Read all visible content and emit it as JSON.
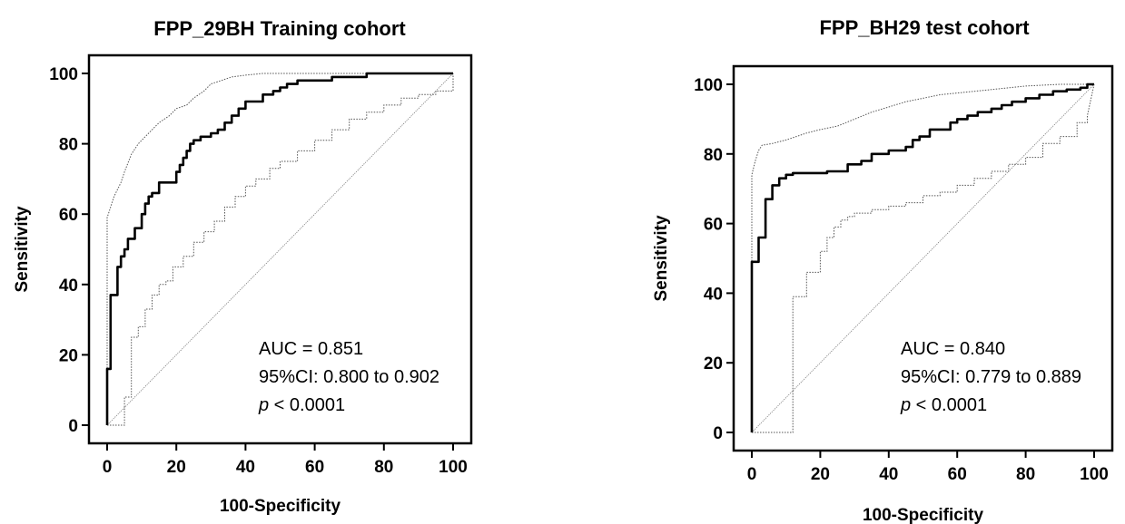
{
  "chart_data": [
    {
      "type": "line",
      "title": "FPP_29BH Training cohort",
      "xlabel": "100-Specificity",
      "ylabel": "Sensitivity",
      "xlim": [
        0,
        100
      ],
      "ylim": [
        0,
        100
      ],
      "xticks": [
        "0",
        "20",
        "40",
        "60",
        "80",
        "100"
      ],
      "yticks": [
        "0",
        "20",
        "40",
        "60",
        "80",
        "100"
      ],
      "grid": false,
      "annotations": {
        "auc": "AUC = 0.851",
        "ci": "95%CI: 0.800 to 0.902",
        "p_italic": "p",
        "p_rest": " < 0.0001"
      },
      "series": [
        {
          "role": "roc",
          "x": [
            0,
            0,
            1,
            1,
            3,
            3,
            4,
            4,
            5,
            5,
            6,
            6,
            8,
            8,
            10,
            10,
            11,
            11,
            12,
            12,
            13,
            13,
            15,
            15,
            17,
            17,
            20,
            20,
            21,
            21,
            22,
            22,
            23,
            23,
            24,
            24,
            25,
            25,
            27,
            27,
            30,
            30,
            32,
            32,
            34,
            34,
            36,
            36,
            38,
            38,
            40,
            40,
            45,
            45,
            48,
            48,
            50,
            50,
            52,
            52,
            55,
            55,
            60,
            60,
            65,
            65,
            70,
            70,
            75,
            75,
            85,
            85,
            100
          ],
          "y": [
            0,
            16,
            16,
            37,
            37,
            45,
            45,
            48,
            48,
            50,
            50,
            53,
            53,
            56,
            56,
            60,
            60,
            63,
            63,
            65,
            65,
            66,
            66,
            69,
            69,
            69,
            69,
            72,
            72,
            74,
            74,
            76,
            76,
            78,
            78,
            80,
            80,
            81,
            81,
            82,
            82,
            83,
            83,
            84,
            84,
            86,
            86,
            88,
            88,
            90,
            90,
            92,
            92,
            94,
            94,
            95,
            95,
            96,
            96,
            97,
            97,
            98,
            98,
            98,
            98,
            99,
            99,
            99,
            99,
            100,
            100,
            100,
            100
          ]
        },
        {
          "role": "ci-upper",
          "x": [
            0,
            0,
            1,
            2,
            3,
            4,
            5,
            7,
            9,
            11,
            13,
            15,
            18,
            20,
            23,
            25,
            28,
            30,
            33,
            36,
            40,
            45,
            55,
            65,
            80,
            100
          ],
          "y": [
            0,
            59,
            62,
            65,
            67,
            69,
            72,
            77,
            80,
            82,
            84,
            86,
            88,
            90,
            91,
            93,
            95,
            97,
            98,
            99,
            99.5,
            100,
            100,
            100,
            100,
            100
          ]
        },
        {
          "role": "ci-lower",
          "x": [
            0,
            5,
            5,
            7,
            7,
            9,
            9,
            11,
            11,
            13,
            13,
            15,
            15,
            17,
            17,
            19,
            19,
            22,
            22,
            25,
            25,
            28,
            28,
            31,
            31,
            34,
            34,
            37,
            37,
            40,
            40,
            43,
            43,
            47,
            47,
            50,
            50,
            55,
            55,
            60,
            60,
            65,
            65,
            70,
            70,
            75,
            75,
            80,
            80,
            85,
            85,
            90,
            90,
            95,
            95,
            100,
            100
          ],
          "y": [
            0,
            0,
            8,
            8,
            25,
            25,
            28,
            28,
            33,
            33,
            37,
            37,
            40,
            40,
            41,
            41,
            45,
            45,
            48,
            48,
            52,
            52,
            55,
            55,
            58,
            58,
            62,
            62,
            65,
            65,
            68,
            68,
            70,
            70,
            73,
            73,
            75,
            75,
            78,
            78,
            81,
            81,
            84,
            84,
            87,
            87,
            89,
            89,
            91,
            91,
            93,
            93,
            94,
            94,
            95,
            95,
            100
          ]
        },
        {
          "role": "reference",
          "x": [
            0,
            100
          ],
          "y": [
            0,
            100
          ]
        }
      ]
    },
    {
      "type": "line",
      "title": "FPP_BH29 test cohort",
      "xlabel": "100-Specificity",
      "ylabel": "Sensitivity",
      "xlim": [
        0,
        100
      ],
      "ylim": [
        0,
        100
      ],
      "xticks": [
        "0",
        "20",
        "40",
        "60",
        "80",
        "100"
      ],
      "yticks": [
        "0",
        "20",
        "40",
        "60",
        "80",
        "100"
      ],
      "grid": false,
      "annotations": {
        "auc": "AUC = 0.840",
        "ci": "95%CI: 0.779 to 0.889",
        "p_italic": "p",
        "p_rest": " < 0.0001"
      },
      "series": [
        {
          "role": "roc",
          "x": [
            0,
            0,
            2,
            2,
            4,
            4,
            6,
            6,
            8,
            8,
            10,
            10,
            12,
            12,
            15,
            20,
            22,
            22,
            28,
            28,
            32,
            32,
            35,
            35,
            40,
            40,
            45,
            45,
            47,
            47,
            49,
            49,
            52,
            52,
            58,
            58,
            60,
            60,
            63,
            63,
            66,
            66,
            70,
            70,
            73,
            73,
            76,
            76,
            80,
            80,
            84,
            84,
            88,
            88,
            92,
            92,
            96,
            96,
            98,
            98,
            100
          ],
          "y": [
            0,
            49,
            49,
            56,
            56,
            67,
            67,
            71,
            71,
            73,
            73,
            74,
            74,
            74.5,
            74.5,
            74.5,
            74.5,
            75,
            75,
            77,
            77,
            78,
            78,
            80,
            80,
            81,
            81,
            82,
            82,
            84,
            84,
            85,
            85,
            87,
            87,
            89,
            89,
            90,
            90,
            91,
            91,
            92,
            92,
            93,
            93,
            94,
            94,
            95,
            95,
            96,
            96,
            97,
            97,
            98,
            98,
            98.5,
            98.5,
            99,
            99,
            100,
            100
          ]
        },
        {
          "role": "ci-upper",
          "x": [
            0,
            0,
            1,
            2,
            3,
            6,
            10,
            13,
            16,
            20,
            25,
            30,
            35,
            40,
            45,
            50,
            55,
            60,
            65,
            70,
            80,
            90,
            100
          ],
          "y": [
            0,
            74,
            78,
            81,
            82.5,
            83,
            84,
            85,
            86,
            87,
            88,
            90,
            92,
            93.5,
            95,
            96,
            97,
            97.5,
            98,
            98.5,
            99.5,
            100,
            100
          ]
        },
        {
          "role": "ci-lower",
          "x": [
            0,
            12,
            12,
            16,
            16,
            20,
            20,
            22,
            22,
            24,
            24,
            26,
            26,
            28,
            28,
            30,
            30,
            35,
            35,
            40,
            40,
            45,
            45,
            50,
            50,
            55,
            55,
            60,
            60,
            65,
            65,
            70,
            70,
            75,
            75,
            80,
            80,
            85,
            85,
            90,
            90,
            95,
            95,
            98,
            98,
            100
          ],
          "y": [
            0,
            0,
            39,
            39,
            46,
            46,
            52,
            52,
            56,
            56,
            59,
            59,
            61,
            61,
            62,
            62,
            63,
            63,
            64,
            64,
            65,
            65,
            66,
            66,
            68,
            68,
            69,
            69,
            71,
            71,
            73,
            73,
            75,
            75,
            77,
            77,
            79,
            79,
            83,
            83,
            85,
            85,
            89,
            89,
            91,
            100
          ]
        },
        {
          "role": "reference",
          "x": [
            0,
            100
          ],
          "y": [
            0,
            100
          ]
        }
      ]
    }
  ]
}
